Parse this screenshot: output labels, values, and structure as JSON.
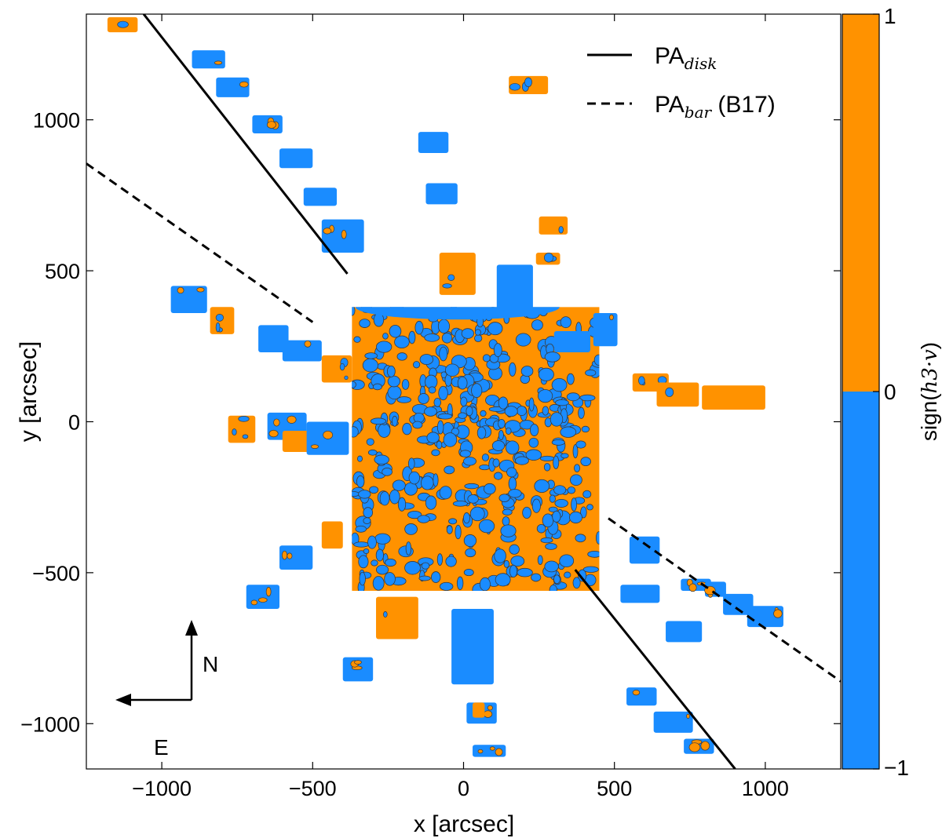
{
  "chart_data": {
    "type": "scatter",
    "xlabel": "x [arcsec]",
    "ylabel": "y [arcsec]",
    "xlim": [
      -1250,
      1250
    ],
    "ylim": [
      -1150,
      1350
    ],
    "xticks": [
      -1000,
      -500,
      0,
      500,
      1000
    ],
    "yticks": [
      -1000,
      -500,
      0,
      500,
      1000
    ],
    "xtick_labels": [
      "−1000",
      "−500",
      "0",
      "500",
      "1000"
    ],
    "ytick_labels": [
      "−1000",
      "−500",
      "0",
      "500",
      "1000"
    ],
    "colors": {
      "positive": "#ff9200",
      "negative": "#1a8cff",
      "line": "#000000"
    },
    "colorbar": {
      "label_prefix": "sign(",
      "label_math": "h3·v",
      "label_suffix": ")",
      "ticks": [
        "1",
        "0",
        "−1"
      ]
    },
    "lines": [
      {
        "name": "PA",
        "subscript": "disk",
        "style": "solid",
        "segments": [
          [
            [
              -1060,
              1350
            ],
            [
              -385,
              490
            ]
          ],
          [
            [
              370,
              -490
            ],
            [
              900,
              -1150
            ]
          ]
        ]
      },
      {
        "name": "PA",
        "subscript": "bar",
        "suffix": " (B17)",
        "style": "dashed",
        "segments": [
          [
            [
              -1250,
              855
            ],
            [
              -500,
              330
            ]
          ],
          [
            [
              480,
              -320
            ],
            [
              1250,
              -860
            ]
          ]
        ]
      }
    ],
    "regions": {
      "central_core": {
        "x": [
          -370,
          450
        ],
        "y": [
          -560,
          380
        ]
      },
      "fields": [
        {
          "sign": 1,
          "x": [
            -1180,
            -1080
          ],
          "y": [
            1290,
            1340
          ]
        },
        {
          "sign": -1,
          "x": [
            -900,
            -790
          ],
          "y": [
            1170,
            1230
          ]
        },
        {
          "sign": -1,
          "x": [
            -820,
            -710
          ],
          "y": [
            1075,
            1140
          ]
        },
        {
          "sign": -1,
          "x": [
            -700,
            -600
          ],
          "y": [
            955,
            1015
          ]
        },
        {
          "sign": -1,
          "x": [
            -610,
            -500
          ],
          "y": [
            840,
            905
          ]
        },
        {
          "sign": -1,
          "x": [
            -530,
            -420
          ],
          "y": [
            715,
            775
          ]
        },
        {
          "sign": -1,
          "x": [
            -470,
            -330
          ],
          "y": [
            560,
            670
          ]
        },
        {
          "sign": 1,
          "x": [
            150,
            280
          ],
          "y": [
            1085,
            1145
          ]
        },
        {
          "sign": -1,
          "x": [
            -150,
            -50
          ],
          "y": [
            890,
            960
          ]
        },
        {
          "sign": -1,
          "x": [
            -125,
            -20
          ],
          "y": [
            720,
            790
          ]
        },
        {
          "sign": 1,
          "x": [
            250,
            345
          ],
          "y": [
            620,
            680
          ]
        },
        {
          "sign": 1,
          "x": [
            240,
            320
          ],
          "y": [
            520,
            560
          ]
        },
        {
          "sign": 1,
          "x": [
            -80,
            40
          ],
          "y": [
            420,
            560
          ]
        },
        {
          "sign": -1,
          "x": [
            110,
            230
          ],
          "y": [
            360,
            520
          ]
        },
        {
          "sign": -1,
          "x": [
            430,
            510
          ],
          "y": [
            250,
            360
          ]
        },
        {
          "sign": -1,
          "x": [
            300,
            420
          ],
          "y": [
            230,
            300
          ]
        },
        {
          "sign": -1,
          "x": [
            -970,
            -850
          ],
          "y": [
            360,
            450
          ]
        },
        {
          "sign": 1,
          "x": [
            -840,
            -760
          ],
          "y": [
            290,
            380
          ]
        },
        {
          "sign": -1,
          "x": [
            -680,
            -580
          ],
          "y": [
            230,
            320
          ]
        },
        {
          "sign": -1,
          "x": [
            -600,
            -470
          ],
          "y": [
            200,
            270
          ]
        },
        {
          "sign": 1,
          "x": [
            -470,
            -370
          ],
          "y": [
            130,
            220
          ]
        },
        {
          "sign": 1,
          "x": [
            560,
            680
          ],
          "y": [
            100,
            160
          ]
        },
        {
          "sign": 1,
          "x": [
            640,
            780
          ],
          "y": [
            50,
            130
          ]
        },
        {
          "sign": 1,
          "x": [
            790,
            1000
          ],
          "y": [
            40,
            120
          ]
        },
        {
          "sign": 1,
          "x": [
            -780,
            -690
          ],
          "y": [
            -70,
            20
          ]
        },
        {
          "sign": -1,
          "x": [
            -650,
            -520
          ],
          "y": [
            -60,
            30
          ]
        },
        {
          "sign": 1,
          "x": [
            -600,
            -500
          ],
          "y": [
            -100,
            -30
          ]
        },
        {
          "sign": -1,
          "x": [
            -520,
            -380
          ],
          "y": [
            -110,
            0
          ]
        },
        {
          "sign": 1,
          "x": [
            -470,
            -400
          ],
          "y": [
            -420,
            -330
          ]
        },
        {
          "sign": -1,
          "x": [
            -610,
            -500
          ],
          "y": [
            -490,
            -410
          ]
        },
        {
          "sign": -1,
          "x": [
            -720,
            -610
          ],
          "y": [
            -620,
            -540
          ]
        },
        {
          "sign": 1,
          "x": [
            -290,
            -150
          ],
          "y": [
            -720,
            -580
          ]
        },
        {
          "sign": -1,
          "x": [
            -400,
            -300
          ],
          "y": [
            -860,
            -780
          ]
        },
        {
          "sign": -1,
          "x": [
            -40,
            100
          ],
          "y": [
            -870,
            -620
          ]
        },
        {
          "sign": -1,
          "x": [
            10,
            110
          ],
          "y": [
            -1000,
            -930
          ]
        },
        {
          "sign": 1,
          "x": [
            30,
            70
          ],
          "y": [
            -980,
            -930
          ]
        },
        {
          "sign": -1,
          "x": [
            30,
            140
          ],
          "y": [
            -1110,
            -1070
          ]
        },
        {
          "sign": -1,
          "x": [
            -30,
            90
          ],
          "y": [
            -810,
            -760
          ]
        },
        {
          "sign": -1,
          "x": [
            520,
            650
          ],
          "y": [
            -600,
            -540
          ]
        },
        {
          "sign": -1,
          "x": [
            540,
            640
          ],
          "y": [
            -940,
            -880
          ]
        },
        {
          "sign": -1,
          "x": [
            630,
            760
          ],
          "y": [
            -1030,
            -960
          ]
        },
        {
          "sign": -1,
          "x": [
            730,
            830
          ],
          "y": [
            -1100,
            -1050
          ]
        },
        {
          "sign": -1,
          "x": [
            670,
            790
          ],
          "y": [
            -730,
            -660
          ]
        },
        {
          "sign": -1,
          "x": [
            550,
            650
          ],
          "y": [
            -470,
            -380
          ]
        },
        {
          "sign": -1,
          "x": [
            720,
            820
          ],
          "y": [
            -560,
            -520
          ]
        },
        {
          "sign": -1,
          "x": [
            800,
            870
          ],
          "y": [
            -580,
            -530
          ]
        },
        {
          "sign": -1,
          "x": [
            860,
            960
          ],
          "y": [
            -640,
            -570
          ]
        },
        {
          "sign": -1,
          "x": [
            940,
            1060
          ],
          "y": [
            -680,
            -610
          ]
        }
      ]
    },
    "compass": {
      "north": "N",
      "east": "E"
    }
  }
}
